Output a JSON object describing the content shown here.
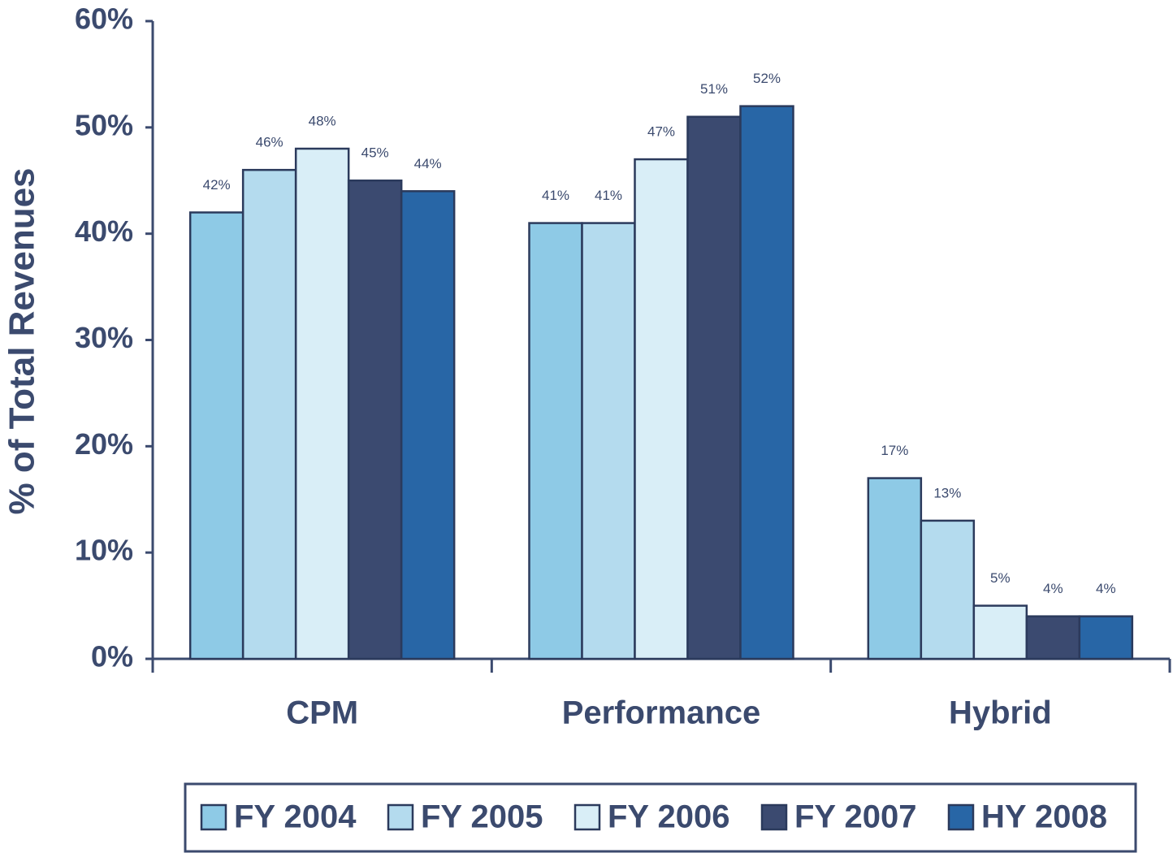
{
  "chart_data": {
    "type": "bar",
    "y_label": "% of Total Revenues",
    "categories": [
      "CPM",
      "Performance",
      "Hybrid"
    ],
    "series": [
      {
        "name": "FY 2004",
        "color": "#8ecae6",
        "values": [
          42,
          41,
          17
        ],
        "value_labels": [
          "42%",
          "41%",
          "17%"
        ]
      },
      {
        "name": "FY 2005",
        "color": "#b4dbee",
        "values": [
          46,
          41,
          13
        ],
        "value_labels": [
          "46%",
          "41%",
          "13%"
        ]
      },
      {
        "name": "FY 2006",
        "color": "#d9eef7",
        "values": [
          48,
          47,
          5
        ],
        "value_labels": [
          "48%",
          "47%",
          "5%"
        ]
      },
      {
        "name": "FY 2007",
        "color": "#3b4a70",
        "values": [
          45,
          51,
          4
        ],
        "value_labels": [
          "45%",
          "51%",
          "4%"
        ]
      },
      {
        "name": "HY 2008",
        "color": "#2866a6",
        "values": [
          44,
          52,
          4
        ],
        "value_labels": [
          "44%",
          "52%",
          "4%"
        ]
      }
    ],
    "ylim": [
      0,
      60
    ],
    "yticks": [
      {
        "value": 0,
        "label": "0%"
      },
      {
        "value": 10,
        "label": "10%"
      },
      {
        "value": 20,
        "label": "20%"
      },
      {
        "value": 30,
        "label": "30%"
      },
      {
        "value": 40,
        "label": "40%"
      },
      {
        "value": 50,
        "label": "50%"
      },
      {
        "value": 60,
        "label": "60%"
      }
    ],
    "legend": "bottom"
  }
}
